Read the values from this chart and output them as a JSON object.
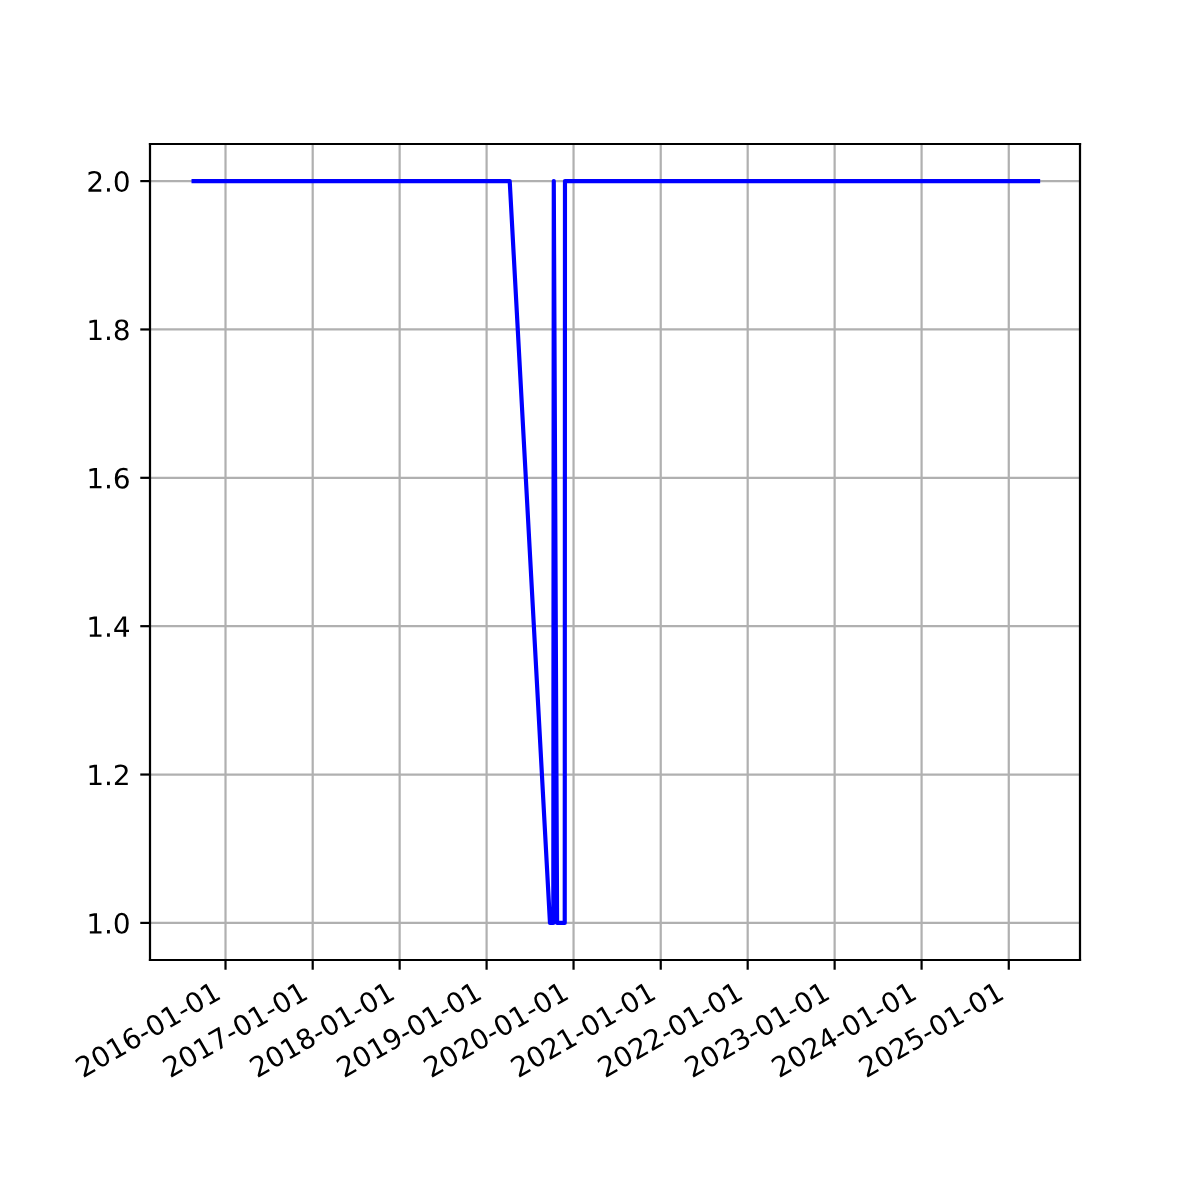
{
  "chart_data": {
    "type": "line",
    "x": [
      "2015-08-20",
      "2019-04-08",
      "2019-09-24",
      "2019-10-08",
      "2019-10-10",
      "2019-10-24",
      "2019-11-25",
      "2019-11-26",
      "2025-05-04"
    ],
    "series": [
      {
        "color": "#0000ff",
        "values": [
          2,
          2,
          1,
          1,
          2,
          1,
          1,
          2,
          2
        ]
      }
    ],
    "xlim": [
      "2015-02-18",
      "2025-10-27"
    ],
    "xticks": [
      "2016-01-01",
      "2017-01-01",
      "2018-01-01",
      "2019-01-01",
      "2020-01-01",
      "2021-01-01",
      "2022-01-01",
      "2023-01-01",
      "2024-01-01",
      "2025-01-01"
    ],
    "ylim": [
      0.95,
      2.05
    ],
    "yticks": [
      {
        "value": 1,
        "label": "1.0"
      },
      1.2,
      1.4,
      1.6,
      1.8,
      {
        "value": 2,
        "label": "2.0"
      }
    ],
    "grid": true,
    "legend": false
  }
}
